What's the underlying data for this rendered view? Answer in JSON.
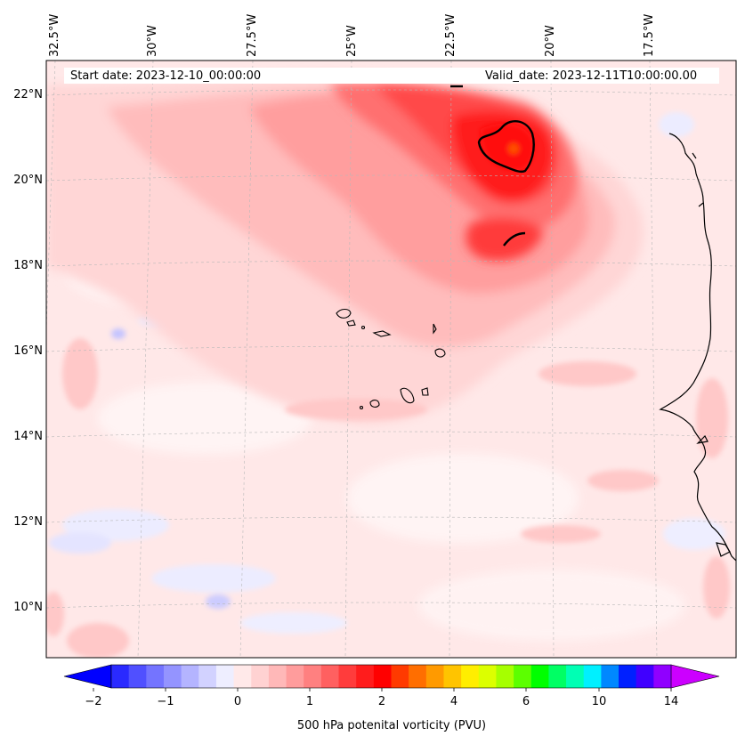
{
  "header": {
    "start_date": "Start date: 2023-12-10_00:00:00",
    "valid_date": "Valid_date: 2023-12-11T10:00:00.00"
  },
  "axes": {
    "longitude_labels": [
      "32.5°W",
      "30°W",
      "27.5°W",
      "25°W",
      "22.5°W",
      "20°W",
      "17.5°W"
    ],
    "latitude_labels": [
      "22°N",
      "20°N",
      "18°N",
      "16°N",
      "14°N",
      "12°N",
      "10°N"
    ]
  },
  "colorbar": {
    "title": "500 hPa potenital vorticity (PVU)",
    "tick_labels": [
      "−2",
      "−1",
      "0",
      "1",
      "2",
      "4",
      "6",
      "10",
      "14"
    ],
    "colors": [
      "#0000ff",
      "#2a2aff",
      "#5050ff",
      "#7474ff",
      "#9494ff",
      "#b4b4ff",
      "#d2d2ff",
      "#eeeeff",
      "#ffe9e9",
      "#ffd2d2",
      "#ffb8b8",
      "#ff9c9c",
      "#ff8080",
      "#ff6060",
      "#ff3c3c",
      "#ff1c1c",
      "#ff0000",
      "#ff3a00",
      "#ff6e00",
      "#ff9a00",
      "#ffc400",
      "#ffee00",
      "#dcff00",
      "#a6ff00",
      "#5cff00",
      "#00ff00",
      "#00ff64",
      "#00ffb4",
      "#00f0ff",
      "#0088ff",
      "#0020ff",
      "#4000ff",
      "#9000ff",
      "#cc00ff"
    ]
  },
  "map": {
    "background_color": "#ffe8e8",
    "contour_color": "#000000"
  }
}
